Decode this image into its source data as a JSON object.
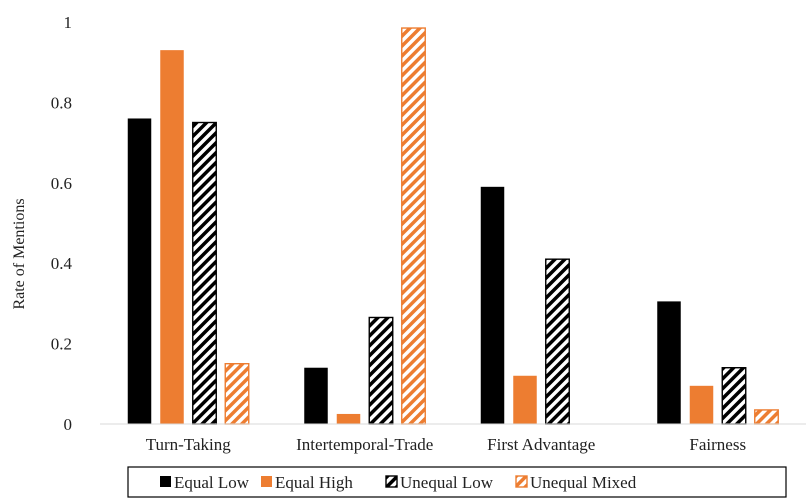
{
  "chart_data": {
    "type": "bar",
    "title": "",
    "xlabel": "",
    "ylabel": "Rate of Mentions",
    "ylim": [
      0,
      1
    ],
    "y_ticks": [
      {
        "value": 0,
        "label": "0"
      },
      {
        "value": 0.2,
        "label": "0.2"
      },
      {
        "value": 0.4,
        "label": "0.4"
      },
      {
        "value": 0.6,
        "label": "0.6"
      },
      {
        "value": 0.8,
        "label": "0.8"
      },
      {
        "value": 1,
        "label": "1"
      }
    ],
    "categories": [
      "Turn-Taking",
      "Intertemporal-Trade",
      "First Advantage",
      "Fairness"
    ],
    "series": [
      {
        "name": "Equal Low",
        "color": "#000000",
        "pattern": "solid",
        "values": [
          0.76,
          0.14,
          0.59,
          0.305
        ]
      },
      {
        "name": "Equal High",
        "color": "#ED7D31",
        "pattern": "solid",
        "values": [
          0.93,
          0.025,
          0.12,
          0.095
        ]
      },
      {
        "name": "Unequal Low",
        "color": "#000000",
        "pattern": "diagonal-stripes",
        "values": [
          0.75,
          0.265,
          0.41,
          0.14
        ]
      },
      {
        "name": "Unequal Mixed",
        "color": "#ED7D31",
        "pattern": "diagonal-stripes",
        "values": [
          0.15,
          0.985,
          0.0,
          0.035
        ]
      }
    ],
    "grid": false,
    "legend_position": "bottom"
  }
}
